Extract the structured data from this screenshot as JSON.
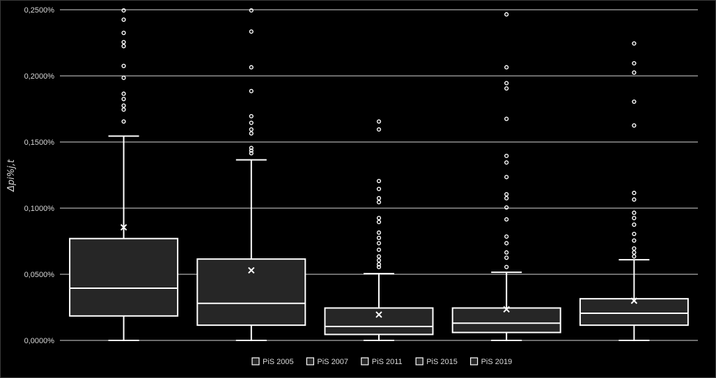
{
  "chart_data": {
    "type": "box",
    "title": "",
    "ylabel": "Δpi%j,t",
    "ylim": [
      0,
      0.25
    ],
    "yticks": [
      "0,0000%",
      "0,0500%",
      "0,1000%",
      "0,1500%",
      "0,2000%",
      "0,2500%"
    ],
    "ytick_values": [
      0,
      0.05,
      0.1,
      0.15,
      0.2,
      0.25
    ],
    "grid": true,
    "legend_position": "bottom",
    "series": [
      {
        "name": "PiS 2005",
        "min": 0.0,
        "q1": 0.0185,
        "median": 0.0395,
        "q3": 0.077,
        "max": 0.1545,
        "mean": 0.0855,
        "outliers": [
          0.1655,
          0.1745,
          0.1775,
          0.1825,
          0.1865,
          0.1985,
          0.2075,
          0.2225,
          0.2255,
          0.2325,
          0.2425,
          0.2495
        ]
      },
      {
        "name": "PiS 2007",
        "min": 0.0,
        "q1": 0.0115,
        "median": 0.028,
        "q3": 0.0615,
        "max": 0.1365,
        "mean": 0.053,
        "outliers": [
          0.1415,
          0.1435,
          0.1455,
          0.1565,
          0.1595,
          0.1645,
          0.1695,
          0.1885,
          0.2065,
          0.2335,
          0.2495
        ]
      },
      {
        "name": "PiS 2011",
        "min": 0.0,
        "q1": 0.0045,
        "median": 0.0105,
        "q3": 0.0245,
        "max": 0.0505,
        "mean": 0.0195,
        "outliers": [
          0.0555,
          0.0575,
          0.0605,
          0.0635,
          0.0685,
          0.0735,
          0.0775,
          0.0815,
          0.0895,
          0.0925,
          0.1045,
          0.1075,
          0.1145,
          0.1205,
          0.1595,
          0.1655
        ]
      },
      {
        "name": "PiS 2015",
        "min": 0.0,
        "q1": 0.006,
        "median": 0.013,
        "q3": 0.0245,
        "max": 0.0515,
        "mean": 0.0235,
        "outliers": [
          0.0555,
          0.0625,
          0.0665,
          0.0735,
          0.0785,
          0.0915,
          0.1005,
          0.1075,
          0.1105,
          0.1235,
          0.1345,
          0.1395,
          0.1675,
          0.1905,
          0.1945,
          0.2065,
          0.2465
        ]
      },
      {
        "name": "PiS 2019",
        "min": 0.0,
        "q1": 0.0115,
        "median": 0.0205,
        "q3": 0.0315,
        "max": 0.061,
        "mean": 0.03,
        "outliers": [
          0.0635,
          0.0665,
          0.0695,
          0.0755,
          0.0805,
          0.0875,
          0.0925,
          0.0965,
          0.1065,
          0.1115,
          0.1625,
          0.1805,
          0.2025,
          0.2095,
          0.2245
        ]
      }
    ],
    "colors": {
      "background": "#000000",
      "box_fill": "#262626",
      "stroke": "#ffffff",
      "grid": "#d9d9d9",
      "text": "#d9d9d9"
    }
  }
}
